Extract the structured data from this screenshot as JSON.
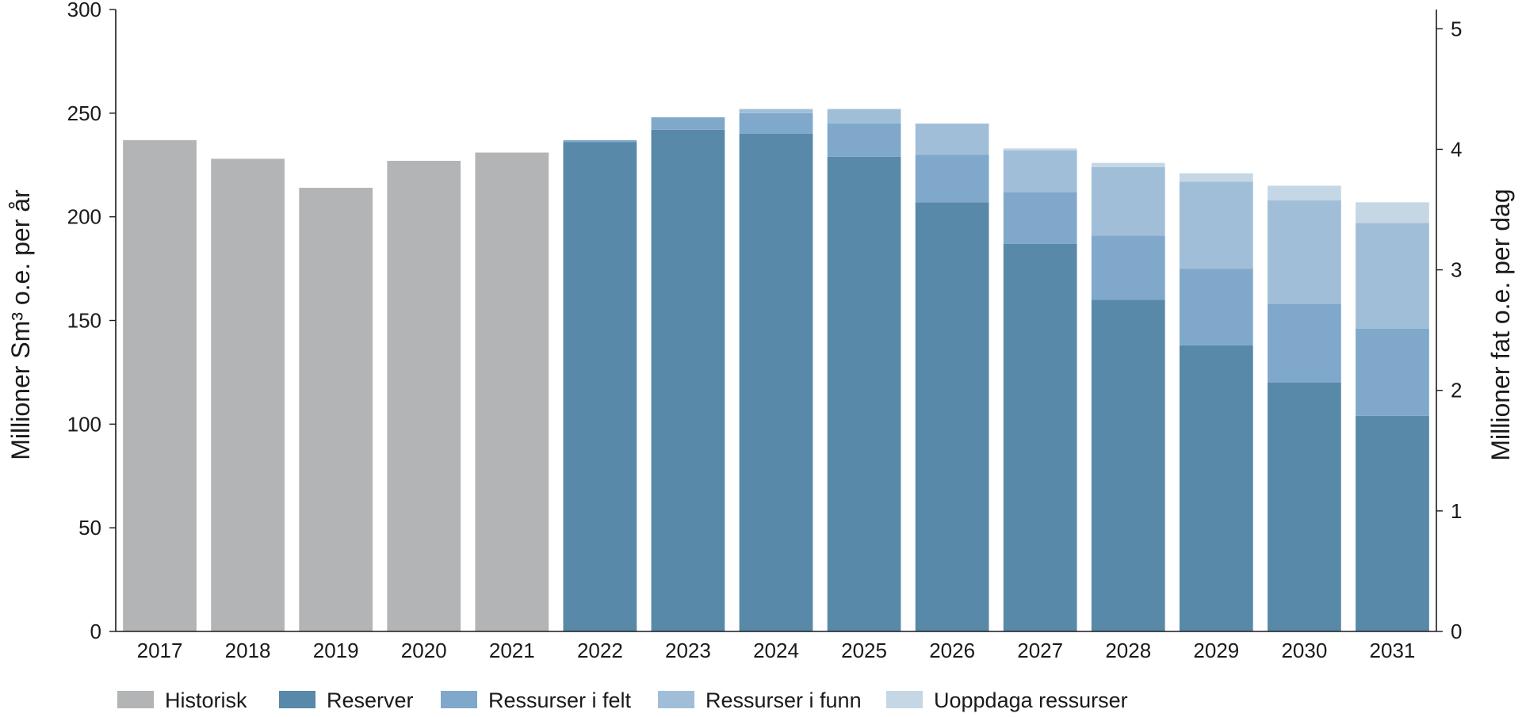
{
  "chart_data": {
    "type": "bar",
    "stacked": true,
    "categories": [
      "2017",
      "2018",
      "2019",
      "2020",
      "2021",
      "2022",
      "2023",
      "2024",
      "2025",
      "2026",
      "2027",
      "2028",
      "2029",
      "2030",
      "2031"
    ],
    "series": [
      {
        "name": "Historisk",
        "color": "#b3b4b6",
        "values": [
          237,
          228,
          214,
          227,
          231,
          0,
          0,
          0,
          0,
          0,
          0,
          0,
          0,
          0,
          0
        ]
      },
      {
        "name": "Reserver",
        "color": "#5889a8",
        "values": [
          0,
          0,
          0,
          0,
          0,
          236,
          242,
          240,
          229,
          207,
          187,
          160,
          138,
          120,
          104
        ]
      },
      {
        "name": "Ressurser i felt",
        "color": "#7fa8cb",
        "values": [
          0,
          0,
          0,
          0,
          0,
          1,
          6,
          10,
          16,
          23,
          25,
          31,
          37,
          38,
          42
        ]
      },
      {
        "name": "Ressurser i funn",
        "color": "#a1bed8",
        "values": [
          0,
          0,
          0,
          0,
          0,
          0,
          0,
          2,
          7,
          15,
          20,
          33,
          42,
          50,
          51
        ]
      },
      {
        "name": "Uoppdaga ressurser",
        "color": "#c5d7e5",
        "values": [
          0,
          0,
          0,
          0,
          0,
          0,
          0,
          0,
          0,
          0,
          1,
          2,
          4,
          7,
          10
        ]
      }
    ],
    "ylabel": "Millioner Sm³ o.e. per år",
    "ylim": [
      0,
      300
    ],
    "yticks": [
      "0",
      "50",
      "100",
      "150",
      "200",
      "250",
      "300"
    ],
    "y2label": "Millioner fat o.e. per dag",
    "y2lim": [
      0,
      5.16
    ],
    "y2ticks": [
      "0",
      "1",
      "2",
      "3",
      "4",
      "5"
    ],
    "grid": false,
    "legend_position": "bottom"
  }
}
